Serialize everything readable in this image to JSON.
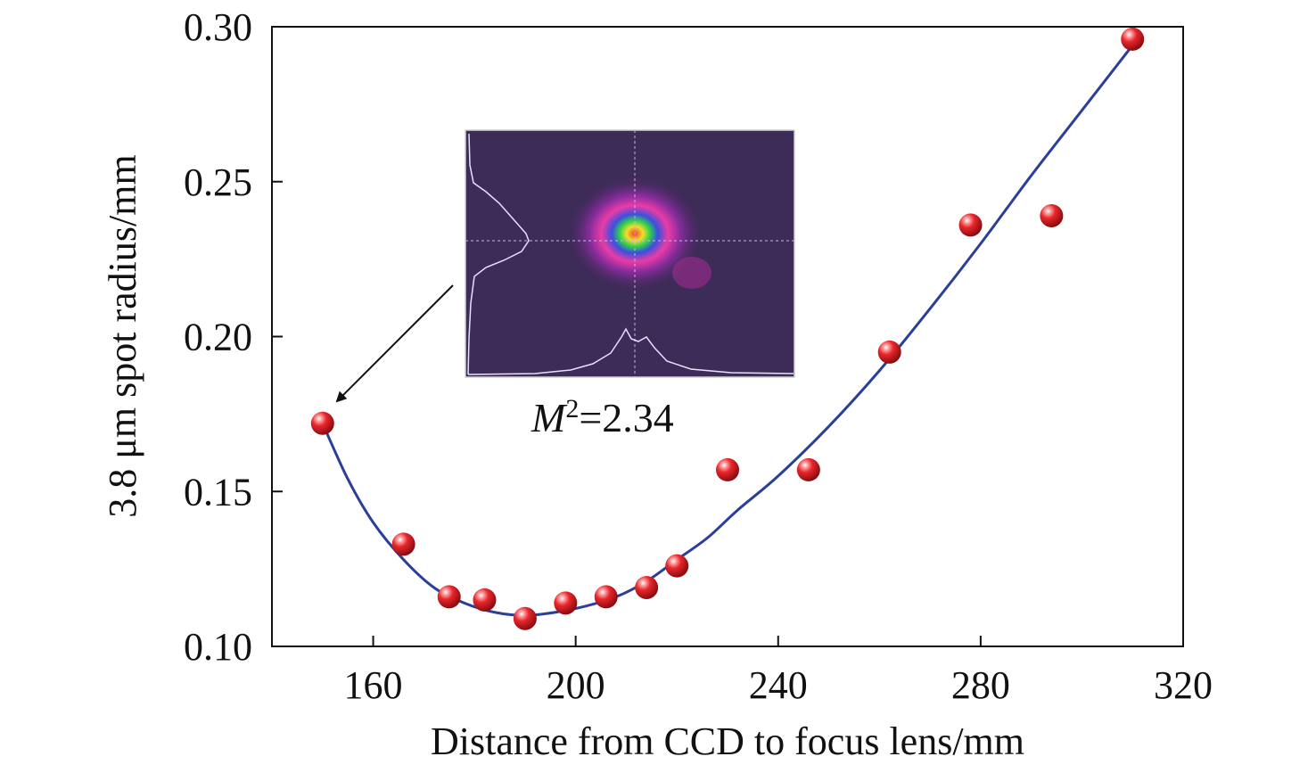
{
  "chart_data": {
    "type": "scatter",
    "title": "",
    "xlabel": "Distance from CCD to focus lens/mm",
    "ylabel": "3.8 μm spot radius/mm",
    "xlim": [
      140,
      320
    ],
    "ylim": [
      0.1,
      0.3
    ],
    "xticks": [
      160,
      200,
      240,
      280,
      320
    ],
    "xtick_labels": [
      "160",
      "200",
      "240",
      "280",
      "320"
    ],
    "yticks": [
      0.1,
      0.15,
      0.2,
      0.25,
      0.3
    ],
    "ytick_labels": [
      "0.10",
      "0.15",
      "0.20",
      "0.25",
      "0.30"
    ],
    "grid": false,
    "series": [
      {
        "type": "scatter",
        "color": "#d81f26",
        "points": [
          {
            "x": 150,
            "y": 0.172
          },
          {
            "x": 166,
            "y": 0.133
          },
          {
            "x": 175,
            "y": 0.116
          },
          {
            "x": 182,
            "y": 0.115
          },
          {
            "x": 190,
            "y": 0.109
          },
          {
            "x": 198,
            "y": 0.114
          },
          {
            "x": 206,
            "y": 0.116
          },
          {
            "x": 214,
            "y": 0.119
          },
          {
            "x": 220,
            "y": 0.126
          },
          {
            "x": 230,
            "y": 0.157
          },
          {
            "x": 246,
            "y": 0.157
          },
          {
            "x": 262,
            "y": 0.195
          },
          {
            "x": 278,
            "y": 0.236
          },
          {
            "x": 294,
            "y": 0.239
          },
          {
            "x": 310,
            "y": 0.296
          }
        ]
      },
      {
        "type": "line",
        "color": "#2a3f9a",
        "points": [
          {
            "x": 150,
            "y": 0.172
          },
          {
            "x": 155,
            "y": 0.154
          },
          {
            "x": 160,
            "y": 0.14
          },
          {
            "x": 166,
            "y": 0.128
          },
          {
            "x": 172,
            "y": 0.119
          },
          {
            "x": 178,
            "y": 0.114
          },
          {
            "x": 184,
            "y": 0.111
          },
          {
            "x": 190,
            "y": 0.11
          },
          {
            "x": 196,
            "y": 0.111
          },
          {
            "x": 202,
            "y": 0.113
          },
          {
            "x": 208,
            "y": 0.116
          },
          {
            "x": 214,
            "y": 0.121
          },
          {
            "x": 220,
            "y": 0.128
          },
          {
            "x": 226,
            "y": 0.135
          },
          {
            "x": 232,
            "y": 0.144
          },
          {
            "x": 240,
            "y": 0.155
          },
          {
            "x": 250,
            "y": 0.171
          },
          {
            "x": 260,
            "y": 0.189
          },
          {
            "x": 270,
            "y": 0.209
          },
          {
            "x": 280,
            "y": 0.23
          },
          {
            "x": 290,
            "y": 0.252
          },
          {
            "x": 300,
            "y": 0.273
          },
          {
            "x": 310,
            "y": 0.294
          }
        ]
      }
    ],
    "annotations": [
      {
        "text_prefix": "M",
        "superscript": "2",
        "text_suffix": "=2.34",
        "anchor_x": 150,
        "anchor_y": 0.172
      }
    ],
    "inset": {
      "description_type": "beam-profile-image",
      "colors": [
        "#3b2a56",
        "#5d2c8a",
        "#c81bb0",
        "#e93ca6",
        "#3a4fe0",
        "#2fd24a",
        "#e8e830",
        "#f0402a"
      ]
    }
  }
}
